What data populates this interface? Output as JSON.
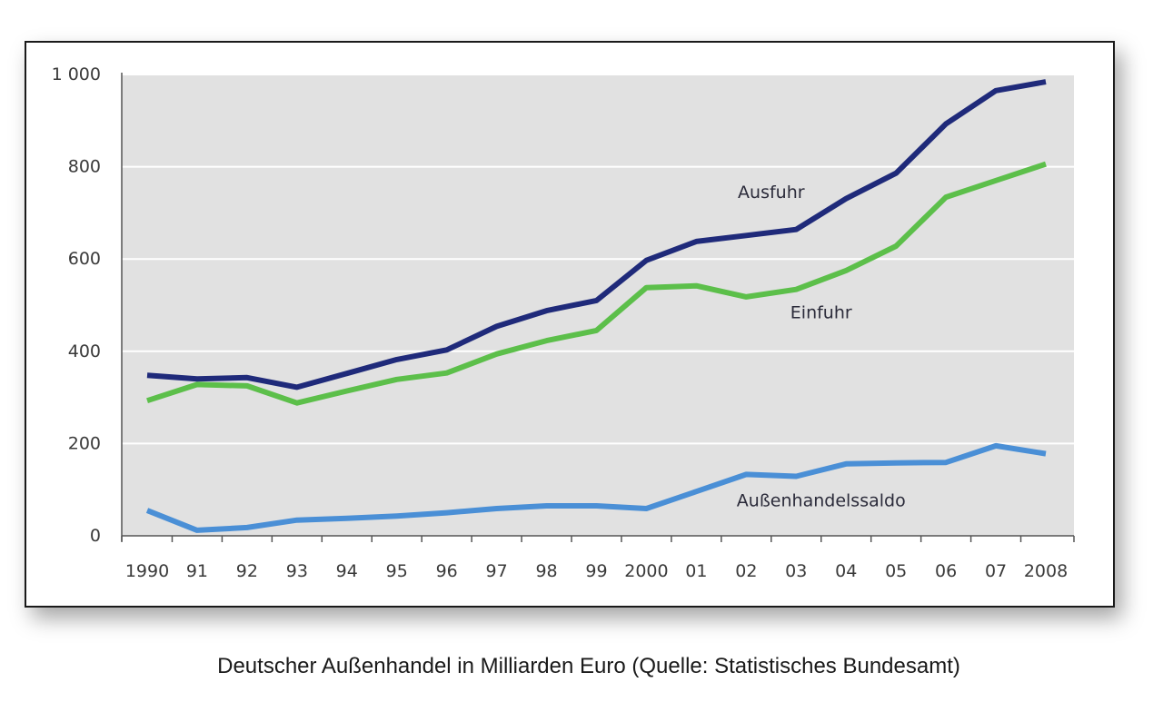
{
  "caption": "Deutscher Außenhandel in Milliarden Euro (Quelle: Statistisches Bundesamt)",
  "chart_data": {
    "type": "line",
    "title": "Deutscher Außenhandel in Milliarden Euro (Quelle: Statistisches Bundesamt)",
    "xlabel": "",
    "ylabel": "",
    "grid": true,
    "ylim": [
      0,
      1000
    ],
    "yticks": [
      0,
      200,
      400,
      600,
      800,
      1000
    ],
    "ytick_labels": [
      "0",
      "200",
      "400",
      "600",
      "800",
      "1 000"
    ],
    "categories": [
      "1990",
      "91",
      "92",
      "93",
      "94",
      "95",
      "96",
      "97",
      "98",
      "99",
      "2000",
      "01",
      "02",
      "03",
      "04",
      "05",
      "06",
      "07",
      "2008"
    ],
    "series": [
      {
        "name": "Ausfuhr",
        "color": "#1f2a7a",
        "values": [
          348,
          340,
          343,
          322,
          352,
          382,
          403,
          454,
          488,
          510,
          597,
          638,
          651,
          664,
          731,
          786,
          893,
          965,
          984
        ]
      },
      {
        "name": "Einfuhr",
        "color": "#5cbf4a",
        "values": [
          293,
          328,
          325,
          288,
          314,
          339,
          353,
          394,
          423,
          445,
          538,
          542,
          518,
          534,
          575,
          628,
          734,
          770,
          806
        ]
      },
      {
        "name": "Außenhandelssaldo",
        "color": "#4a8fd6",
        "values": [
          55,
          12,
          18,
          34,
          38,
          43,
          50,
          59,
          65,
          65,
          59,
          96,
          133,
          129,
          156,
          158,
          159,
          195,
          178
        ]
      }
    ]
  }
}
